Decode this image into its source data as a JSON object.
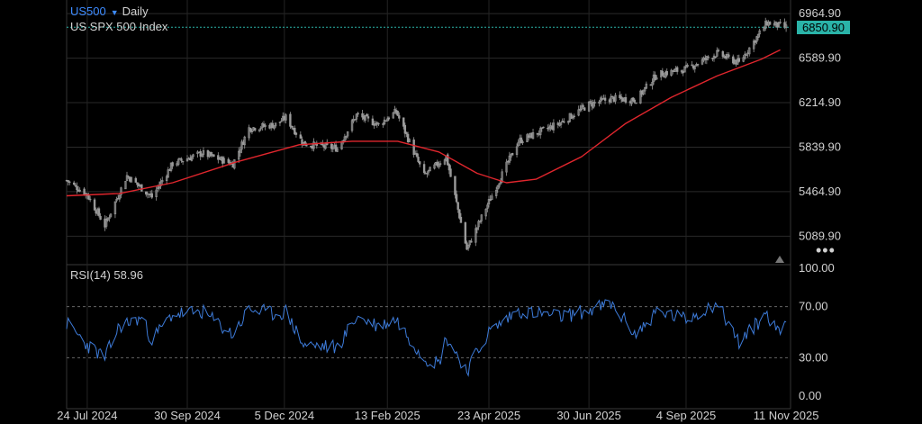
{
  "header": {
    "symbol": "US500",
    "interval": "Daily",
    "instrument_name": "US SPX 500 Index"
  },
  "rsi": {
    "label": "RSI(14)",
    "value": "58.96"
  },
  "last_price": "6850.90",
  "colors": {
    "background": "#000000",
    "candle": "#9a9a9a",
    "moving_average": "#e0262d",
    "rsi_line": "#3d7bd9",
    "price_tag": "#2ab3a8",
    "symbol": "#3d8bff"
  },
  "icons": [
    "dropdown-triangle-icon",
    "more-options-icon",
    "scroll-marker-icon"
  ],
  "chart_data": [
    {
      "type": "candlestick",
      "title": "US500 Daily",
      "y_ticks": [
        "6964.90",
        "6589.90",
        "6214.90",
        "5839.90",
        "5464.90",
        "5089.90"
      ],
      "x_ticks": [
        "24 Jul 2024",
        "30 Sep 2024",
        "5 Dec 2024",
        "13 Feb 2025",
        "23 Apr 2025",
        "30 Jun 2025",
        "4 Sep 2025",
        "11 Nov 2025"
      ],
      "ylim": [
        4850,
        7080
      ],
      "grid": true,
      "series": [
        {
          "kind": "close",
          "points": [
            [
              "2024-07-10",
              5560
            ],
            [
              "2024-07-24",
              5440
            ],
            [
              "2024-08-05",
              5180
            ],
            [
              "2024-08-20",
              5600
            ],
            [
              "2024-09-06",
              5420
            ],
            [
              "2024-09-20",
              5700
            ],
            [
              "2024-10-10",
              5790
            ],
            [
              "2024-10-31",
              5700
            ],
            [
              "2024-11-11",
              6000
            ],
            [
              "2024-11-29",
              6030
            ],
            [
              "2024-12-06",
              6090
            ],
            [
              "2024-12-18",
              5870
            ],
            [
              "2025-01-10",
              5830
            ],
            [
              "2025-01-23",
              6110
            ],
            [
              "2025-02-07",
              6030
            ],
            [
              "2025-02-19",
              6140
            ],
            [
              "2025-03-10",
              5600
            ],
            [
              "2025-03-25",
              5760
            ],
            [
              "2025-04-08",
              4980
            ],
            [
              "2025-04-23",
              5380
            ],
            [
              "2025-05-13",
              5890
            ],
            [
              "2025-06-10",
              6040
            ],
            [
              "2025-06-30",
              6200
            ],
            [
              "2025-07-15",
              6250
            ],
            [
              "2025-08-01",
              6240
            ],
            [
              "2025-08-15",
              6450
            ],
            [
              "2025-09-04",
              6500
            ],
            [
              "2025-09-25",
              6630
            ],
            [
              "2025-10-10",
              6550
            ],
            [
              "2025-10-29",
              6890
            ],
            [
              "2025-11-11",
              6850
            ]
          ]
        },
        {
          "name": "Moving average",
          "kind": "moving_average",
          "points": [
            [
              "2024-07-10",
              5430
            ],
            [
              "2024-08-15",
              5450
            ],
            [
              "2024-09-20",
              5540
            ],
            [
              "2024-11-01",
              5710
            ],
            [
              "2024-12-15",
              5860
            ],
            [
              "2025-01-20",
              5890
            ],
            [
              "2025-02-20",
              5890
            ],
            [
              "2025-03-20",
              5800
            ],
            [
              "2025-04-15",
              5620
            ],
            [
              "2025-05-05",
              5540
            ],
            [
              "2025-05-25",
              5570
            ],
            [
              "2025-06-25",
              5760
            ],
            [
              "2025-07-25",
              6040
            ],
            [
              "2025-08-25",
              6260
            ],
            [
              "2025-09-25",
              6440
            ],
            [
              "2025-10-25",
              6580
            ],
            [
              "2025-11-07",
              6660
            ]
          ]
        }
      ]
    },
    {
      "type": "line",
      "title": "RSI(14) 58.96",
      "y_ticks": [
        "100.00",
        "70.00",
        "30.00",
        "0.00"
      ],
      "ylim": [
        0,
        100
      ],
      "reference_lines": [
        70,
        30
      ],
      "series": [
        {
          "name": "RSI(14)",
          "points": [
            [
              "2024-07-10",
              57
            ],
            [
              "2024-07-24",
              40
            ],
            [
              "2024-08-05",
              30
            ],
            [
              "2024-08-15",
              55
            ],
            [
              "2024-08-30",
              61
            ],
            [
              "2024-09-06",
              44
            ],
            [
              "2024-09-20",
              64
            ],
            [
              "2024-10-10",
              66
            ],
            [
              "2024-10-31",
              48
            ],
            [
              "2024-11-11",
              68
            ],
            [
              "2024-11-29",
              64
            ],
            [
              "2024-12-06",
              66
            ],
            [
              "2024-12-18",
              40
            ],
            [
              "2025-01-10",
              38
            ],
            [
              "2025-01-23",
              62
            ],
            [
              "2025-02-07",
              55
            ],
            [
              "2025-02-19",
              60
            ],
            [
              "2025-03-10",
              30
            ],
            [
              "2025-03-20",
              26
            ],
            [
              "2025-03-25",
              46
            ],
            [
              "2025-04-08",
              20
            ],
            [
              "2025-04-23",
              50
            ],
            [
              "2025-05-13",
              67
            ],
            [
              "2025-06-10",
              62
            ],
            [
              "2025-06-30",
              67
            ],
            [
              "2025-07-15",
              72
            ],
            [
              "2025-08-01",
              48
            ],
            [
              "2025-08-15",
              66
            ],
            [
              "2025-09-04",
              60
            ],
            [
              "2025-09-25",
              73
            ],
            [
              "2025-10-10",
              42
            ],
            [
              "2025-10-29",
              65
            ],
            [
              "2025-11-05",
              50
            ],
            [
              "2025-11-11",
              58.96
            ]
          ]
        }
      ]
    }
  ]
}
